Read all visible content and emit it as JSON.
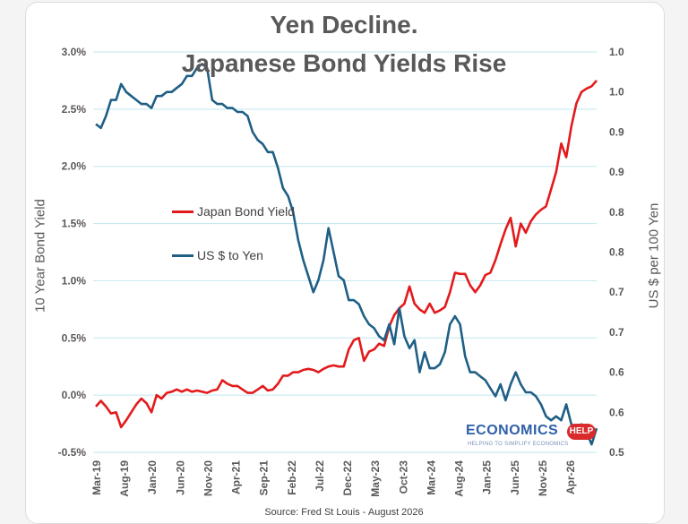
{
  "chart_data": {
    "type": "line",
    "title": "Yen Decline.",
    "subtitle": "Japanese Bond Yields Rise",
    "ylabel_left": "10 Year Bond Yield",
    "ylabel_right": "US $ per 100 Yen",
    "source": "Source: Fred St Louis - August 2026",
    "y_left": {
      "min": -0.5,
      "max": 3.0,
      "ticks": [
        "-0.5%",
        "0.0%",
        "0.5%",
        "1.0%",
        "1.5%",
        "2.0%",
        "2.5%",
        "3.0%"
      ]
    },
    "y_right": {
      "min": 0.5,
      "max": 1.0,
      "ticks": [
        "0.5",
        "0.6",
        "0.6",
        "0.7",
        "0.7",
        "0.8",
        "0.8",
        "0.9",
        "0.9",
        "1.0",
        "1.0"
      ]
    },
    "x_ticks": [
      "Mar-19",
      "Aug-19",
      "Jan-20",
      "Jun-20",
      "Nov-20",
      "Apr-21",
      "Sep-21",
      "Feb-22",
      "Jul-22",
      "Dec-22",
      "May-23",
      "Oct-23",
      "Mar-24",
      "Aug-24",
      "Jan-25",
      "Jun-25",
      "Nov-25",
      "Apr-26"
    ],
    "legend": [
      "Japan Bond Yield",
      "US $ to Yen"
    ],
    "legend_position": "center-left",
    "grid": "horizontal",
    "colors": {
      "bond": "#e31a1c",
      "fx": "#1f5f85",
      "grid": "#bfe6f0"
    },
    "series": [
      {
        "name": "Japan Bond Yield",
        "axis": "left",
        "values": [
          -0.1,
          -0.05,
          -0.1,
          -0.16,
          -0.15,
          -0.28,
          -0.22,
          -0.15,
          -0.08,
          -0.03,
          -0.07,
          -0.15,
          0.0,
          -0.03,
          0.02,
          0.03,
          0.05,
          0.03,
          0.05,
          0.03,
          0.04,
          0.03,
          0.02,
          0.04,
          0.05,
          0.13,
          0.1,
          0.08,
          0.08,
          0.05,
          0.02,
          0.02,
          0.05,
          0.08,
          0.04,
          0.05,
          0.1,
          0.17,
          0.17,
          0.2,
          0.2,
          0.22,
          0.23,
          0.22,
          0.2,
          0.23,
          0.25,
          0.26,
          0.25,
          0.25,
          0.4,
          0.48,
          0.5,
          0.3,
          0.38,
          0.4,
          0.45,
          0.43,
          0.6,
          0.7,
          0.76,
          0.8,
          0.95,
          0.8,
          0.75,
          0.72,
          0.8,
          0.72,
          0.74,
          0.77,
          0.9,
          1.07,
          1.06,
          1.06,
          0.96,
          0.9,
          0.96,
          1.05,
          1.07,
          1.18,
          1.32,
          1.45,
          1.55,
          1.3,
          1.5,
          1.42,
          1.52,
          1.58,
          1.62,
          1.65,
          1.8,
          1.95,
          2.2,
          2.08,
          2.35,
          2.55,
          2.65,
          2.68,
          2.7,
          2.75
        ]
      },
      {
        "name": "US $ to Yen",
        "axis": "right",
        "values": [
          0.91,
          0.905,
          0.92,
          0.94,
          0.94,
          0.96,
          0.95,
          0.945,
          0.94,
          0.935,
          0.935,
          0.93,
          0.945,
          0.945,
          0.95,
          0.95,
          0.955,
          0.96,
          0.97,
          0.97,
          0.98,
          0.985,
          0.98,
          0.94,
          0.935,
          0.935,
          0.93,
          0.93,
          0.925,
          0.925,
          0.92,
          0.9,
          0.89,
          0.885,
          0.875,
          0.875,
          0.855,
          0.83,
          0.82,
          0.8,
          0.765,
          0.74,
          0.72,
          0.7,
          0.715,
          0.74,
          0.78,
          0.75,
          0.72,
          0.715,
          0.69,
          0.69,
          0.685,
          0.67,
          0.66,
          0.655,
          0.645,
          0.64,
          0.66,
          0.635,
          0.68,
          0.645,
          0.63,
          0.64,
          0.6,
          0.625,
          0.605,
          0.605,
          0.61,
          0.625,
          0.66,
          0.67,
          0.66,
          0.62,
          0.6,
          0.6,
          0.595,
          0.59,
          0.58,
          0.57,
          0.585,
          0.565,
          0.585,
          0.6,
          0.585,
          0.575,
          0.575,
          0.57,
          0.56,
          0.545,
          0.54,
          0.545,
          0.54,
          0.56,
          0.535,
          0.53,
          0.535,
          0.525,
          0.51,
          0.53
        ]
      }
    ]
  }
}
